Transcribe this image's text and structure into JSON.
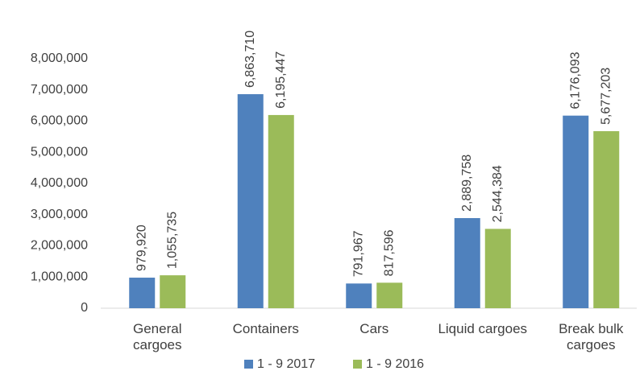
{
  "chart_data": {
    "type": "bar",
    "categories": [
      "General cargoes",
      "Containers",
      "Cars",
      "Liquid cargoes",
      "Break bulk cargoes"
    ],
    "series": [
      {
        "name": "1 - 9 2017",
        "color": "#4f81bd",
        "values": [
          979920,
          6863710,
          791967,
          2889758,
          6176093
        ],
        "value_labels": [
          "979,920",
          "6,863,710",
          "791,967",
          "2,889,758",
          "6,176,093"
        ]
      },
      {
        "name": "1 - 9 2016",
        "color": "#9bbb59",
        "values": [
          1055735,
          6195447,
          817596,
          2544384,
          5677203
        ],
        "value_labels": [
          "1,055,735",
          "6,195,447",
          "817,596",
          "2,544,384",
          "5,677,203"
        ]
      }
    ],
    "ylim": [
      0,
      8000000
    ],
    "yticks": [
      0,
      {
        "value": 1000000,
        "label": "1,000,000"
      },
      {
        "value": 2000000,
        "label": "2,000,000"
      },
      {
        "value": 3000000,
        "label": "3,000,000"
      },
      {
        "value": 4000000,
        "label": "4,000,000"
      },
      {
        "value": 5000000,
        "label": "5,000,000"
      },
      {
        "value": 6000000,
        "label": "6,000,000"
      },
      {
        "value": 7000000,
        "label": "7,000,000"
      },
      {
        "value": 8000000,
        "label": "8,000,000"
      }
    ],
    "legend": "bottom"
  }
}
